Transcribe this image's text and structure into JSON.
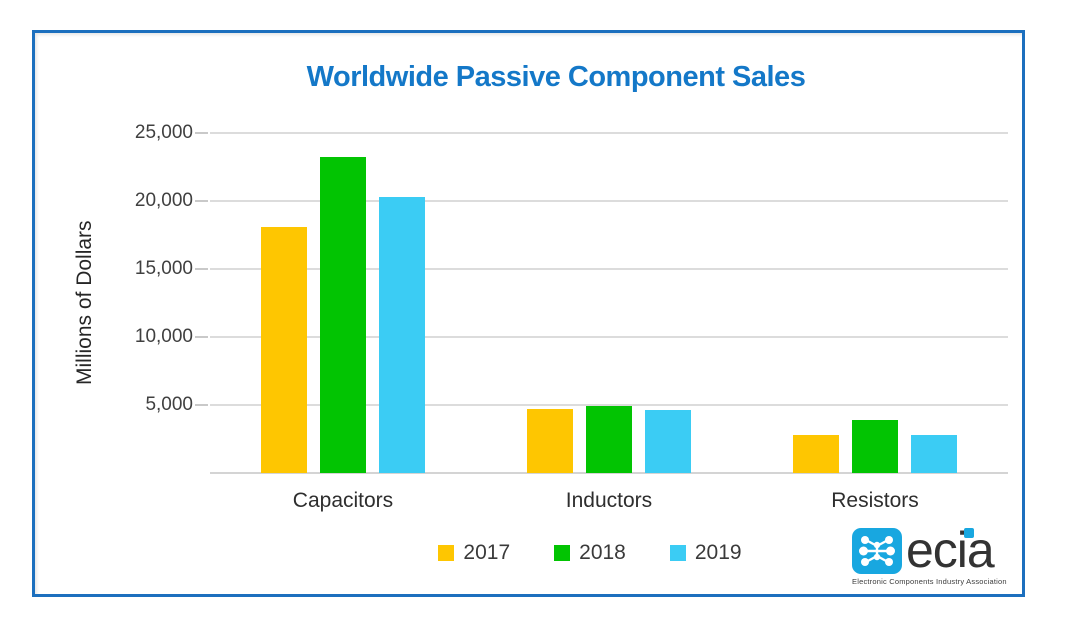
{
  "page": {
    "background": "#FFFFFF"
  },
  "frame": {
    "border_color": "#1C6FBE"
  },
  "header": {
    "title": "Worldwide Passive Component Sales",
    "title_color": "#1478C8"
  },
  "y_axis": {
    "label": "Millions of Dollars"
  },
  "chart_data": {
    "type": "bar",
    "title": "Worldwide Passive Component Sales",
    "categories": [
      "Capacitors",
      "Inductors",
      "Resistors"
    ],
    "series": [
      {
        "name": "2017",
        "color": "#FEC601",
        "values": [
          18100,
          4700,
          2800
        ]
      },
      {
        "name": "2018",
        "color": "#02C402",
        "values": [
          23200,
          4900,
          3900
        ]
      },
      {
        "name": "2019",
        "color": "#3BCCF4",
        "values": [
          20300,
          4600,
          2800
        ]
      }
    ],
    "xlabel": "",
    "ylabel": "Millions of Dollars",
    "ylim": [
      0,
      25000
    ],
    "ytick_interval": 5000,
    "ytick_labels": [
      "5,000",
      "10,000",
      "15,000",
      "20,000",
      "25,000"
    ],
    "grid": true,
    "gridline_color": "#DCDCDC",
    "legend_position": "bottom",
    "legend_labels": [
      "2017",
      "2018",
      "2019"
    ]
  },
  "logo": {
    "name": "ecia",
    "tagline": "Electronic Components Industry Association",
    "mark_color": "#18A7E0"
  }
}
